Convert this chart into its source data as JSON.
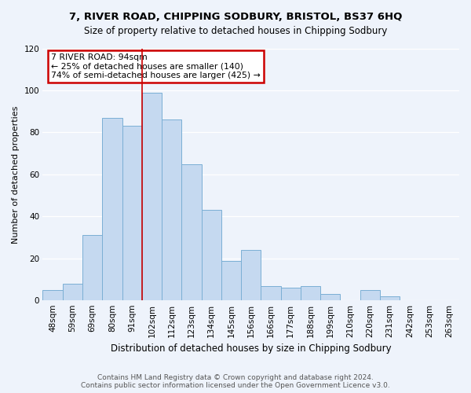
{
  "title": "7, RIVER ROAD, CHIPPING SODBURY, BRISTOL, BS37 6HQ",
  "subtitle": "Size of property relative to detached houses in Chipping Sodbury",
  "xlabel": "Distribution of detached houses by size in Chipping Sodbury",
  "ylabel": "Number of detached properties",
  "bin_labels": [
    "48sqm",
    "59sqm",
    "69sqm",
    "80sqm",
    "91sqm",
    "102sqm",
    "112sqm",
    "123sqm",
    "134sqm",
    "145sqm",
    "156sqm",
    "166sqm",
    "177sqm",
    "188sqm",
    "199sqm",
    "210sqm",
    "220sqm",
    "231sqm",
    "242sqm",
    "253sqm",
    "263sqm"
  ],
  "bar_values": [
    5,
    8,
    31,
    87,
    83,
    99,
    86,
    65,
    43,
    19,
    24,
    7,
    6,
    7,
    3,
    0,
    5,
    2,
    0,
    0,
    0
  ],
  "bar_color": "#c5d9f0",
  "bar_edge_color": "#7bafd4",
  "red_line_bar_index": 5,
  "annotation_text_line1": "7 RIVER ROAD: 94sqm",
  "annotation_text_line2": "← 25% of detached houses are smaller (140)",
  "annotation_text_line3": "74% of semi-detached houses are larger (425) →",
  "annotation_box_color": "#ffffff",
  "annotation_box_edge_color": "#cc0000",
  "ylim": [
    0,
    120
  ],
  "yticks": [
    0,
    20,
    40,
    60,
    80,
    100,
    120
  ],
  "footer_line1": "Contains HM Land Registry data © Crown copyright and database right 2024.",
  "footer_line2": "Contains public sector information licensed under the Open Government Licence v3.0.",
  "background_color": "#eef3fb",
  "grid_color": "#ffffff",
  "title_fontsize": 9.5,
  "subtitle_fontsize": 8.5,
  "ylabel_fontsize": 8,
  "xlabel_fontsize": 8.5,
  "tick_fontsize": 7.5,
  "footer_fontsize": 6.5
}
